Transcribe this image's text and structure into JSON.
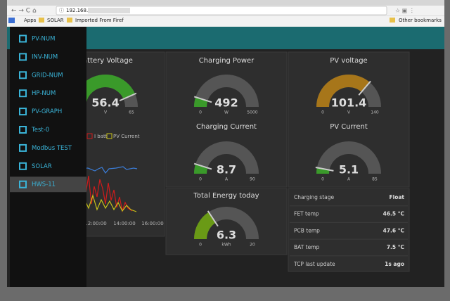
{
  "browser": {
    "address": "192.168.",
    "bookmarks": [
      "Apps",
      "SOLAR",
      "Imported From Firef"
    ],
    "other_bookmarks": "Other bookmarks"
  },
  "menu": [
    "PV-NUM",
    "INV-NUM",
    "GRID-NUM",
    "HP-NUM",
    "PV-GRAPH",
    "Test-0",
    "Modbus TEST",
    "SOLAR",
    "HWS-11"
  ],
  "gauges": [
    {
      "title": "Battery Voltage",
      "value": 56.4,
      "unit": "V",
      "max": 65
    },
    {
      "title": "Charging Power",
      "value": 492,
      "unit": "W",
      "min": 0,
      "max": 5000
    },
    {
      "title": "Charging Current",
      "value": 8.7,
      "unit": "A",
      "min": 0,
      "max": 90
    },
    {
      "title": "PV voltage",
      "value": 101.4,
      "unit": "V",
      "min": 0,
      "max": 140
    },
    {
      "title": "PV Current",
      "value": 5.1,
      "unit": "A",
      "min": 0,
      "max": 85
    },
    {
      "title": "Total Energy today",
      "value": 6.3,
      "unit": "kWh",
      "min": 0,
      "max": 20
    }
  ],
  "chart": {
    "legend": [
      "I batt",
      "PV Current"
    ],
    "x_labels": [
      "12:00:00",
      "14:00:00",
      "16:00:00"
    ]
  },
  "status_table": [
    [
      "Charging stage",
      "Float"
    ],
    [
      "FET temp",
      "46.5 °C"
    ],
    [
      "PCB temp",
      "47.6 °C"
    ],
    [
      "BAT temp",
      "7.5 °C"
    ],
    [
      "TCP last update",
      "1s ago"
    ]
  ]
}
